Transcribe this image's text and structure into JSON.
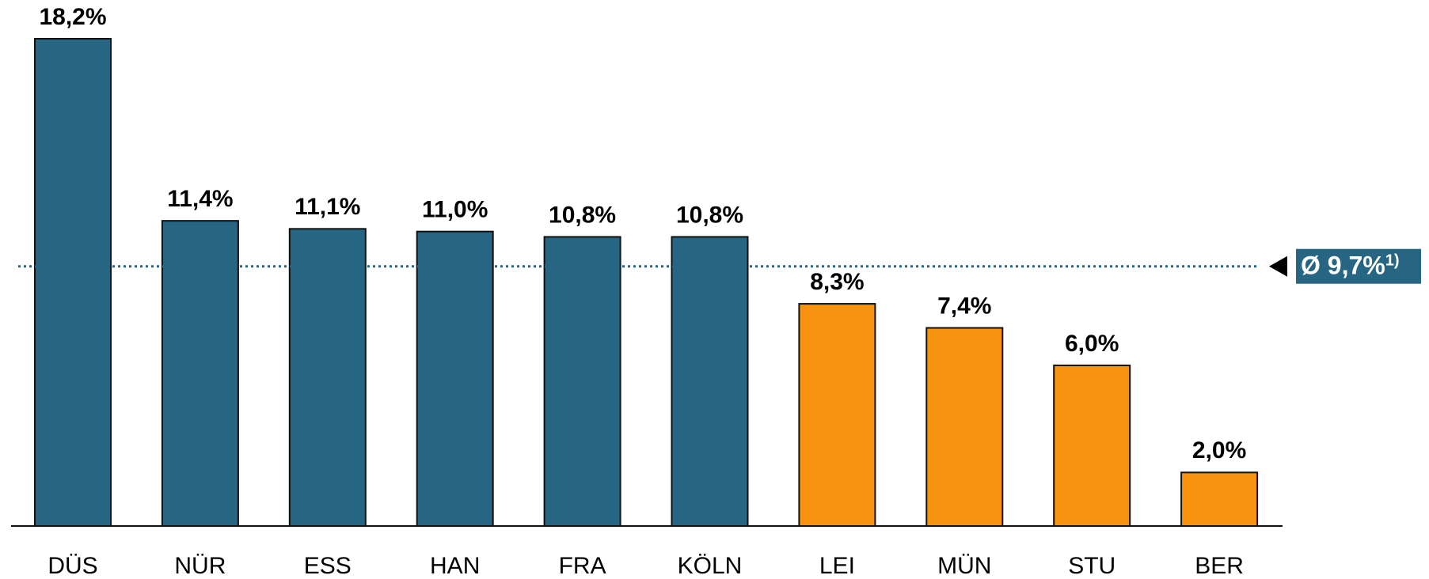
{
  "chart_data": {
    "type": "bar",
    "categories": [
      "DÜS",
      "NÜR",
      "ESS",
      "HAN",
      "FRA",
      "KÖLN",
      "LEI",
      "MÜN",
      "STU",
      "BER"
    ],
    "values": [
      18.2,
      11.4,
      11.1,
      11.0,
      10.8,
      10.8,
      8.3,
      7.4,
      6.0,
      2.0
    ],
    "value_labels": [
      "18,2%",
      "11,4%",
      "11,1%",
      "11,0%",
      "10,8%",
      "10,8%",
      "8,3%",
      "7,4%",
      "6,0%",
      "2,0%"
    ],
    "colors": [
      "#266682",
      "#266682",
      "#266682",
      "#266682",
      "#266682",
      "#266682",
      "#f7930f",
      "#f7930f",
      "#f7930f",
      "#f7930f"
    ],
    "ylim": [
      0,
      18.2
    ],
    "average": {
      "value": 9.7,
      "label": "Ø 9,7%",
      "note": "1)",
      "color": "#266682"
    }
  }
}
